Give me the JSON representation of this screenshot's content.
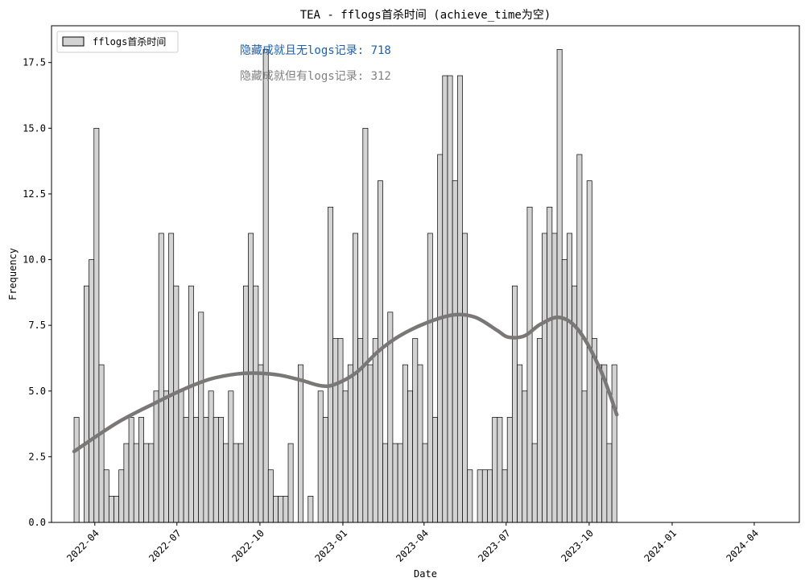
{
  "chart_data": {
    "type": "bar",
    "title": "TEA - fflogs首杀时间 (achieve_time为空)",
    "xlabel": "Date",
    "ylabel": "Frequency",
    "x_start": "2022-03-09",
    "bin_width_days": 5.52,
    "ylim": [
      0,
      18.9
    ],
    "yticks": [
      0.0,
      2.5,
      5.0,
      7.5,
      10.0,
      12.5,
      15.0,
      17.5
    ],
    "ytick_labels": [
      "0.0",
      "2.5",
      "5.0",
      "7.5",
      "10.0",
      "12.5",
      "15.0",
      "17.5"
    ],
    "xticks": [
      {
        "label": "2022-04",
        "date": "2022-04-01"
      },
      {
        "label": "2022-07",
        "date": "2022-07-01"
      },
      {
        "label": "2022-10",
        "date": "2022-10-01"
      },
      {
        "label": "2023-01",
        "date": "2023-01-01"
      },
      {
        "label": "2023-04",
        "date": "2023-04-01"
      },
      {
        "label": "2023-07",
        "date": "2023-07-01"
      },
      {
        "label": "2023-10",
        "date": "2023-10-01"
      },
      {
        "label": "2024-01",
        "date": "2024-01-01"
      },
      {
        "label": "2024-04",
        "date": "2024-04-01"
      }
    ],
    "xlim": [
      "2022-02-12",
      "2024-05-21"
    ],
    "values": [
      4,
      0,
      9,
      10,
      15,
      6,
      2,
      1,
      1,
      2,
      3,
      4,
      3,
      4,
      3,
      3,
      5,
      11,
      5,
      11,
      9,
      5,
      4,
      9,
      4,
      8,
      4,
      5,
      4,
      4,
      3,
      5,
      3,
      3,
      9,
      11,
      9,
      6,
      18,
      2,
      1,
      1,
      1,
      3,
      0,
      6,
      0,
      1,
      0,
      5,
      4,
      12,
      7,
      7,
      5,
      6,
      11,
      7,
      15,
      6,
      7,
      13,
      3,
      8,
      3,
      3,
      6,
      5,
      7,
      6,
      3,
      11,
      4,
      14,
      17,
      17,
      13,
      17,
      11,
      2,
      0,
      2,
      2,
      2,
      4,
      4,
      2,
      4,
      9,
      6,
      5,
      12,
      3,
      7,
      11,
      12,
      11,
      18,
      10,
      11,
      9,
      14,
      5,
      13,
      7,
      6,
      6,
      3,
      6
    ],
    "series": [
      {
        "name": "fflogs首杀时间",
        "color": "#d3d3d3",
        "edge": "#000000"
      }
    ],
    "kde": {
      "color": "#7a7777",
      "points": [
        [
          0,
          2.7
        ],
        [
          0.08,
          3.8
        ],
        [
          0.15,
          4.55
        ],
        [
          0.2,
          5.05
        ],
        [
          0.25,
          5.45
        ],
        [
          0.3,
          5.65
        ],
        [
          0.34,
          5.68
        ],
        [
          0.38,
          5.6
        ],
        [
          0.42,
          5.4
        ],
        [
          0.455,
          5.2
        ],
        [
          0.48,
          5.25
        ],
        [
          0.52,
          5.7
        ],
        [
          0.56,
          6.5
        ],
        [
          0.6,
          7.1
        ],
        [
          0.65,
          7.6
        ],
        [
          0.7,
          7.9
        ],
        [
          0.74,
          7.8
        ],
        [
          0.78,
          7.3
        ],
        [
          0.8,
          7.05
        ],
        [
          0.83,
          7.1
        ],
        [
          0.86,
          7.55
        ],
        [
          0.895,
          7.8
        ],
        [
          0.93,
          7.3
        ],
        [
          0.97,
          5.8
        ],
        [
          1,
          4.1
        ]
      ]
    },
    "legend": {
      "position": "top-left",
      "label": "fflogs首杀时间"
    },
    "annotations": [
      {
        "text": "隐藏成就且无logs记录: 718",
        "color": "#1f5fa8"
      },
      {
        "text": "隐藏成就但有logs记录: 312",
        "color": "#808080"
      }
    ],
    "grid": false
  }
}
